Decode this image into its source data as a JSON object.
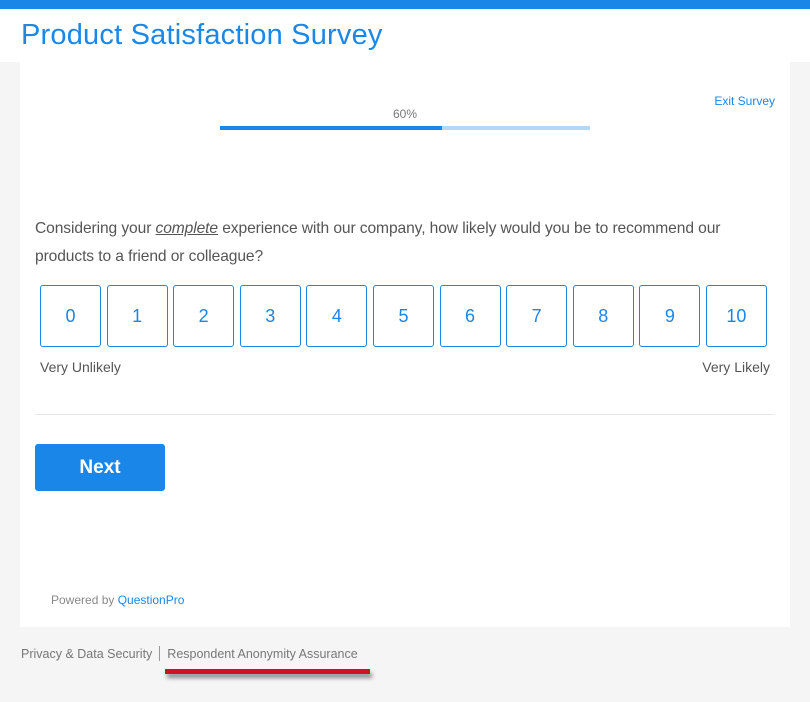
{
  "header": {
    "title": "Product Satisfaction Survey"
  },
  "progress": {
    "label": "60%",
    "value": 60
  },
  "exit_label": "Exit Survey",
  "question": {
    "pre": "Considering your ",
    "emphasis": "complete",
    "post": " experience with our company, how likely would you be to recommend our products to a friend or colleague?"
  },
  "scale": {
    "options": [
      "0",
      "1",
      "2",
      "3",
      "4",
      "5",
      "6",
      "7",
      "8",
      "9",
      "10"
    ],
    "low_label": "Very Unlikely",
    "high_label": "Very Likely"
  },
  "next_label": "Next",
  "powered": {
    "prefix": "Powered by ",
    "brand": "QuestionPro"
  },
  "footer": {
    "privacy": "Privacy & Data Security",
    "anonymity": "Respondent Anonymity Assurance"
  },
  "colors": {
    "accent": "#1a86e8",
    "annotation": "#d0121b"
  }
}
